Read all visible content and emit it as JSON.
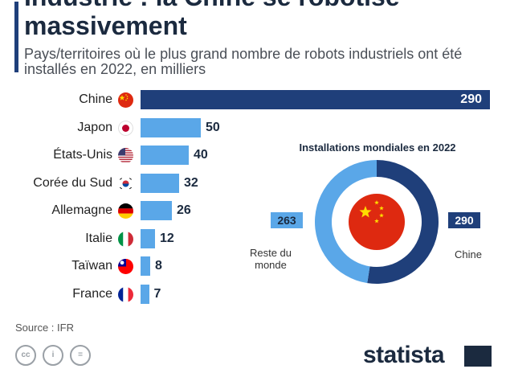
{
  "header": {
    "title": "Industrie : la Chine se robotise massivement",
    "subtitle": "Pays/territoires où le plus grand nombre de robots industriels ont été installés en 2022, en milliers"
  },
  "chart_data": [
    {
      "type": "bar",
      "orientation": "horizontal",
      "categories": [
        "Chine",
        "Japon",
        "États-Unis",
        "Corée du Sud",
        "Allemagne",
        "Italie",
        "Taïwan",
        "France"
      ],
      "values": [
        290,
        50,
        40,
        32,
        26,
        12,
        8,
        7
      ],
      "flags": [
        "china",
        "japan",
        "usa",
        "south-korea",
        "germany",
        "italy",
        "taiwan",
        "france"
      ],
      "highlight_category": "Chine",
      "colors": {
        "highlight": "#1f3f7a",
        "default": "#5aa7e8"
      }
    },
    {
      "type": "pie",
      "style": "donut",
      "title": "Installations mondiales en 2022",
      "slices": [
        {
          "label": "Chine",
          "value": 290,
          "color": "#1f3f7a"
        },
        {
          "label": "Reste du monde",
          "value": 263,
          "color": "#5aa7e8"
        }
      ],
      "center_flag": "china"
    }
  ],
  "donut_ann": {
    "china_label": "Chine",
    "rest_label_1": "Reste du",
    "rest_label_2": "monde",
    "china_value": "290",
    "rest_value": "263"
  },
  "footer": {
    "source": "Source : IFR",
    "license_icons": [
      "cc-icon",
      "attribution-icon",
      "no-derivatives-icon"
    ],
    "brand": "statista"
  }
}
